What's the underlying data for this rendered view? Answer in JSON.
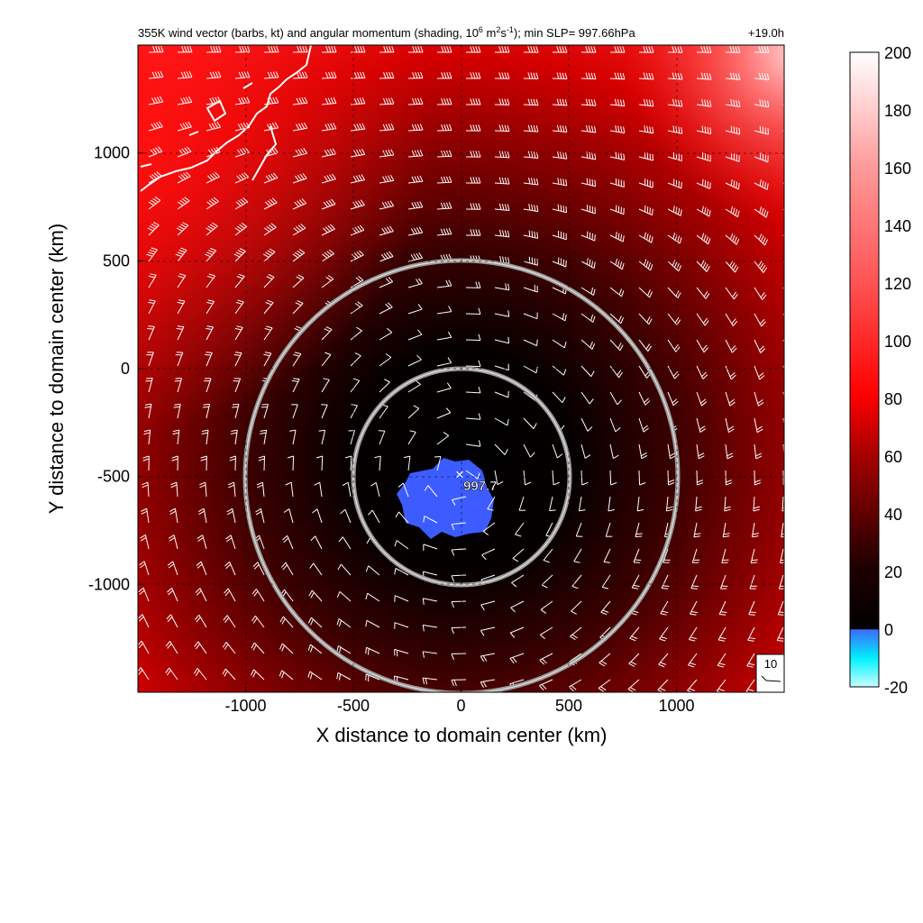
{
  "chart_data": {
    "type": "heatmap",
    "title": {
      "main": "355K wind vector (barbs, kt) and angular momentum (shading, 10",
      "units_sup1": "6",
      "units_mid": " m",
      "units_sup2": "2",
      "units_s": "s",
      "units_sup3": "-1",
      "tail": "); min SLP= 997.66hPa",
      "time": "+19.0h"
    },
    "xlabel": "X distance to domain center (km)",
    "ylabel": "Y distance to domain center (km)",
    "xlim": [
      -1500,
      1500
    ],
    "ylim": [
      -1500,
      1500
    ],
    "xticks": [
      -1000,
      -500,
      0,
      500,
      1000
    ],
    "yticks": [
      -1000,
      -500,
      0,
      500,
      1000
    ],
    "grid": true,
    "colorbar": {
      "range": [
        -20,
        200
      ],
      "ticks": [
        -20,
        0,
        20,
        40,
        60,
        80,
        100,
        120,
        140,
        160,
        180,
        200
      ]
    },
    "storm_center": {
      "x": 0,
      "y": -500,
      "marker": "×",
      "label": "997.7"
    },
    "range_rings_km": [
      500,
      1000
    ],
    "reference_barb": {
      "label": "10",
      "speed_kt": 10
    },
    "negative_region": {
      "center": [
        0,
        -620
      ],
      "extent_km": 180
    },
    "coastline": "Japan (top-left)"
  }
}
